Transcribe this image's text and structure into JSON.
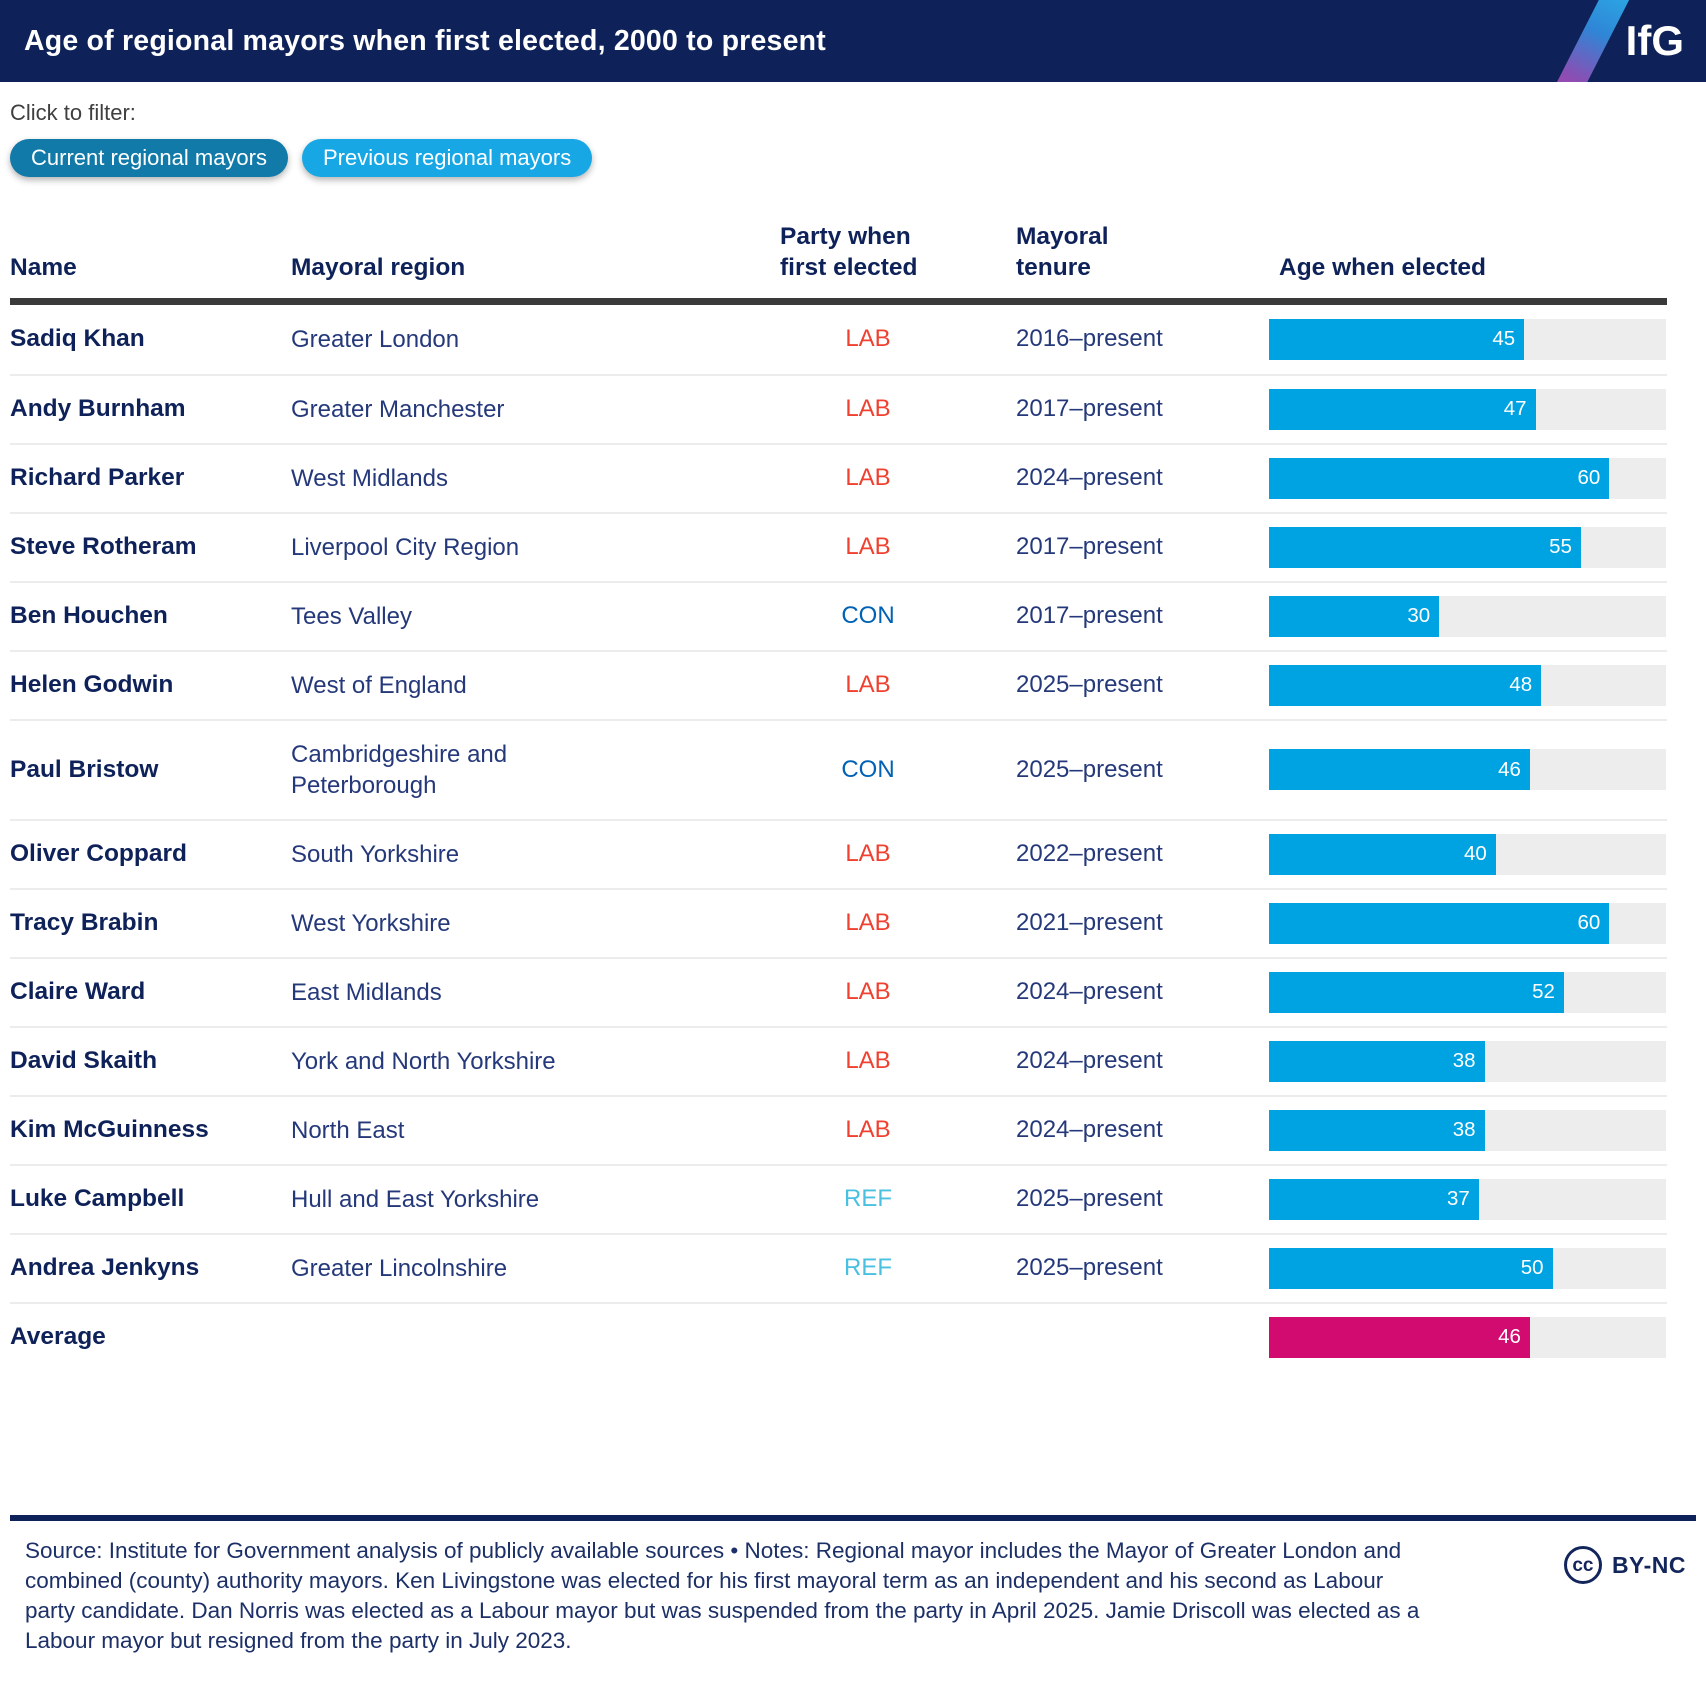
{
  "header": {
    "title": "Age of regional mayors when first elected, 2000 to present",
    "logo_text": "IfG"
  },
  "filter": {
    "label": "Click to filter:",
    "buttons": [
      {
        "label": "Current regional mayors",
        "state": "active"
      },
      {
        "label": "Previous regional mayors",
        "state": "inactive"
      }
    ]
  },
  "table": {
    "headers": {
      "name": "Name",
      "region": "Mayoral region",
      "party": "Party when\nfirst elected",
      "tenure": "Mayoral\ntenure",
      "age": "Age when elected"
    }
  },
  "chart_data": {
    "type": "bar",
    "orientation": "horizontal",
    "title": "Age of regional mayors when first elected, 2000 to present",
    "value_label": "Age when elected",
    "x_max": 70,
    "rows": [
      {
        "name": "Sadiq Khan",
        "region": "Greater London",
        "party": "LAB",
        "tenure": "2016–present",
        "age": 45
      },
      {
        "name": "Andy Burnham",
        "region": "Greater Manchester",
        "party": "LAB",
        "tenure": "2017–present",
        "age": 47
      },
      {
        "name": "Richard Parker",
        "region": "West Midlands",
        "party": "LAB",
        "tenure": "2024–present",
        "age": 60
      },
      {
        "name": "Steve Rotheram",
        "region": "Liverpool City Region",
        "party": "LAB",
        "tenure": "2017–present",
        "age": 55
      },
      {
        "name": "Ben Houchen",
        "region": "Tees Valley",
        "party": "CON",
        "tenure": "2017–present",
        "age": 30
      },
      {
        "name": "Helen Godwin",
        "region": "West of England",
        "party": "LAB",
        "tenure": "2025–present",
        "age": 48
      },
      {
        "name": "Paul Bristow",
        "region": "Cambridgeshire and\nPeterborough",
        "party": "CON",
        "tenure": "2025–present",
        "age": 46
      },
      {
        "name": "Oliver Coppard",
        "region": "South Yorkshire",
        "party": "LAB",
        "tenure": "2022–present",
        "age": 40
      },
      {
        "name": "Tracy Brabin",
        "region": "West Yorkshire",
        "party": "LAB",
        "tenure": "2021–present",
        "age": 60
      },
      {
        "name": "Claire Ward",
        "region": "East Midlands",
        "party": "LAB",
        "tenure": "2024–present",
        "age": 52
      },
      {
        "name": "David Skaith",
        "region": "York and North Yorkshire",
        "party": "LAB",
        "tenure": "2024–present",
        "age": 38
      },
      {
        "name": "Kim McGuinness",
        "region": "North East",
        "party": "LAB",
        "tenure": "2024–present",
        "age": 38
      },
      {
        "name": "Luke Campbell",
        "region": "Hull and East Yorkshire",
        "party": "REF",
        "tenure": "2025–present",
        "age": 37
      },
      {
        "name": "Andrea Jenkyns",
        "region": "Greater Lincolnshire",
        "party": "REF",
        "tenure": "2025–present",
        "age": 50
      }
    ],
    "average": {
      "label": "Average",
      "age": 46
    }
  },
  "colors": {
    "header_bg": "#0e2259",
    "bar": "#00a3e2",
    "bar_track": "#ededed",
    "average_bar": "#d10b6f",
    "party": {
      "LAB": "#f0402f",
      "CON": "#0061b5",
      "REF": "#49c0e0"
    },
    "pill_active": "#117aa8",
    "pill_inactive": "#18a7e5"
  },
  "footer": {
    "source": "Source: Institute for Government analysis of publicly available sources • Notes: Regional mayor includes the Mayor of Greater London and combined (county) authority mayors. Ken Livingstone was elected for his first mayoral term as an independent and his second as Labour party candidate. Dan Norris was elected as a Labour mayor but was suspended from the party in April 2025. Jamie Driscoll was elected as a Labour mayor but resigned from the party in July 2023.",
    "license": {
      "icon": "cc",
      "label": "BY-NC"
    }
  }
}
